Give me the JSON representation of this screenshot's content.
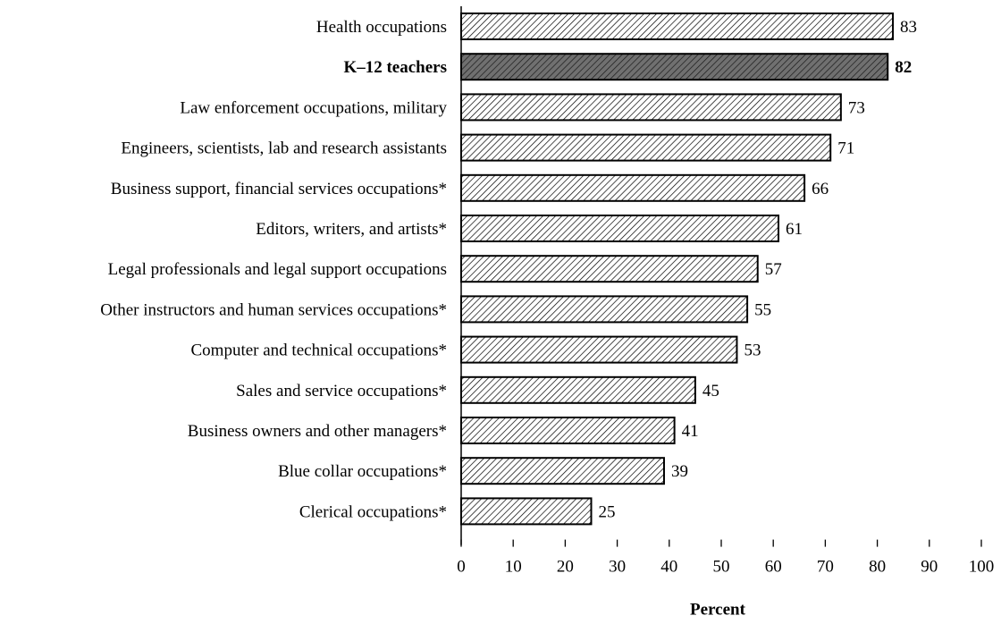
{
  "chart_data": {
    "type": "bar",
    "orientation": "horizontal",
    "categories": [
      "Health occupations",
      "K–12 teachers",
      "Law enforcement occupations, military",
      "Engineers, scientists, lab and research assistants",
      "Business support, financial services occupations*",
      "Editors, writers, and artists*",
      "Legal professionals and legal support occupations",
      "Other instructors and human services occupations*",
      "Computer and technical occupations*",
      "Sales and service occupations*",
      "Business owners and other managers*",
      "Blue collar occupations*",
      "Clerical occupations*"
    ],
    "values": [
      83,
      82,
      73,
      71,
      66,
      61,
      57,
      55,
      53,
      45,
      41,
      39,
      25
    ],
    "highlight_index": 1,
    "xlabel": "Percent",
    "ylabel": "",
    "title": "",
    "xlim": [
      0,
      100
    ],
    "xticks": [
      0,
      10,
      20,
      30,
      40,
      50,
      60,
      70,
      80,
      90,
      100
    ],
    "grid": false,
    "legend": "none",
    "colors": {
      "bar_fill": "#ffffff",
      "bar_hatch": "#000000",
      "highlight_fill": "#707070",
      "highlight_hatch": "#1a1a1a",
      "stroke": "#000000"
    }
  }
}
